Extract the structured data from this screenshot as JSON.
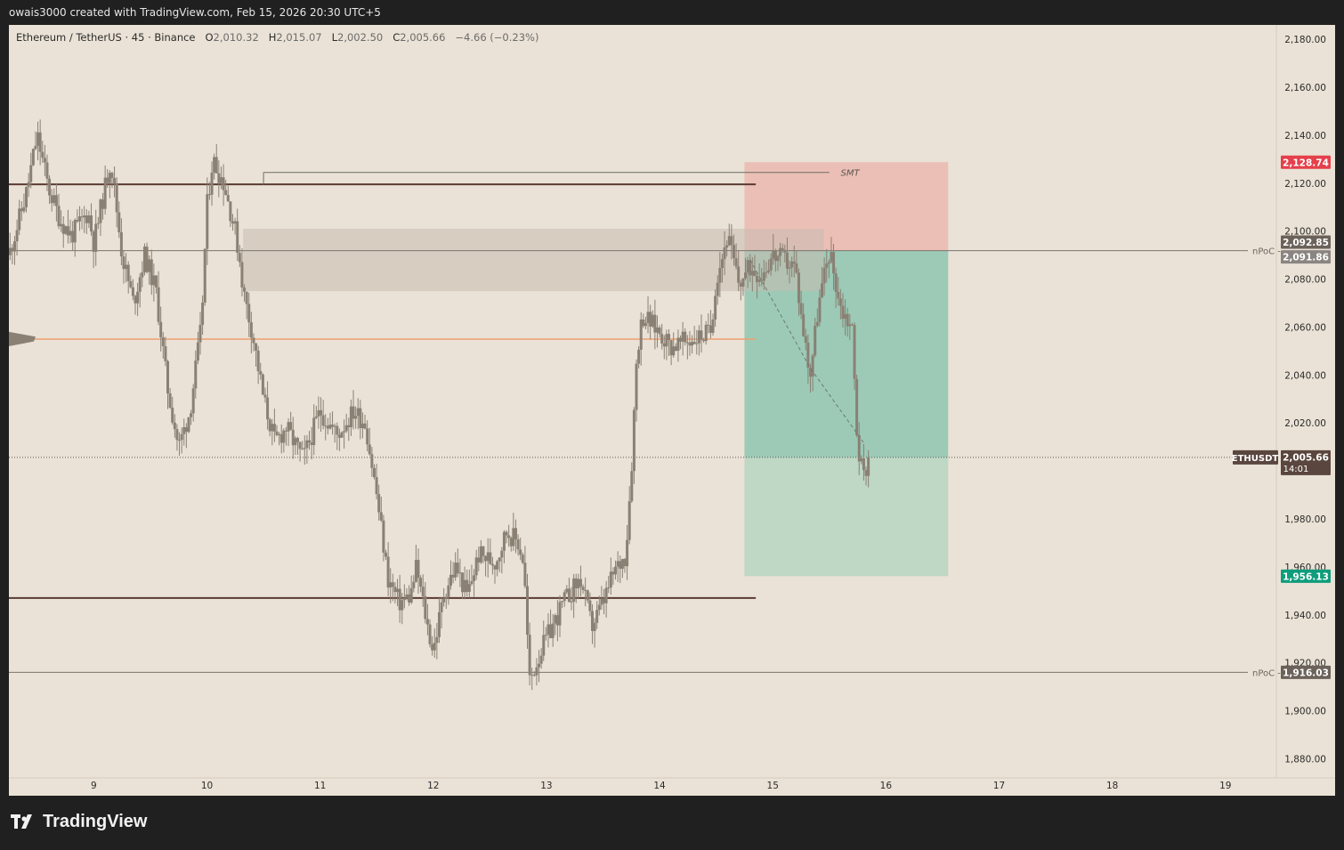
{
  "header": {
    "attribution": "owais3000 created with TradingView.com, Feb 15, 2026 20:30 UTC+5"
  },
  "legend": {
    "symbol": "Ethereum / TetherUS · 45 · Binance",
    "o_label": "O",
    "o_value": "2,010.32",
    "h_label": "H",
    "h_value": "2,015.07",
    "l_label": "L",
    "l_value": "2,002.50",
    "c_label": "C",
    "c_value": "2,005.66",
    "change": "−4.66 (−0.23%)"
  },
  "footer": {
    "brand": "TradingView"
  },
  "colors": {
    "background": "#eae2d6",
    "candle": "#8a8074",
    "stop_zone": "#ebbfb5",
    "target_zone_top": "#9ccab6",
    "target_zone_bottom": "#bfd7c5",
    "stop_label": "#e5404b",
    "target_label": "#0f9d7c",
    "level_line": "#5a3a32",
    "orange_line": "#f0a070"
  },
  "chart_data": {
    "type": "candlestick",
    "symbol": "ETHUSDT",
    "x_tick_labels": [
      "9",
      "10",
      "11",
      "12",
      "13",
      "14",
      "15",
      "16",
      "17",
      "18",
      "19"
    ],
    "y_tick_labels": [
      "2,180.00",
      "2,160.00",
      "2,140.00",
      "2,120.00",
      "2,100.00",
      "2,080.00",
      "2,060.00",
      "2,040.00",
      "2,020.00",
      "2,000.00",
      "1,980.00",
      "1,960.00",
      "1,940.00",
      "1,920.00",
      "1,900.00",
      "1,880.00"
    ],
    "ylim": [
      1872,
      2186
    ],
    "xlim": [
      8.25,
      19.45
    ],
    "ohlc": {
      "open": "2,010.32",
      "high": "2,015.07",
      "low": "2,002.50",
      "close": "2,005.66"
    },
    "price_path": [
      [
        8.25,
        2090
      ],
      [
        8.4,
        2115
      ],
      [
        8.5,
        2140
      ],
      [
        8.6,
        2118
      ],
      [
        8.7,
        2105
      ],
      [
        8.8,
        2098
      ],
      [
        8.95,
        2108
      ],
      [
        9.0,
        2095
      ],
      [
        9.15,
        2130
      ],
      [
        9.25,
        2090
      ],
      [
        9.35,
        2070
      ],
      [
        9.45,
        2090
      ],
      [
        9.55,
        2075
      ],
      [
        9.65,
        2035
      ],
      [
        9.75,
        2010
      ],
      [
        9.85,
        2025
      ],
      [
        9.95,
        2060
      ],
      [
        10.0,
        2110
      ],
      [
        10.05,
        2130
      ],
      [
        10.15,
        2120
      ],
      [
        10.25,
        2100
      ],
      [
        10.3,
        2085
      ],
      [
        10.32,
        2075
      ],
      [
        10.4,
        2058
      ],
      [
        10.5,
        2030
      ],
      [
        10.6,
        2012
      ],
      [
        10.7,
        2018
      ],
      [
        10.85,
        2005
      ],
      [
        11.0,
        2025
      ],
      [
        11.15,
        2015
      ],
      [
        11.3,
        2025
      ],
      [
        11.4,
        2020
      ],
      [
        11.5,
        1990
      ],
      [
        11.6,
        1955
      ],
      [
        11.7,
        1945
      ],
      [
        11.8,
        1948
      ],
      [
        11.85,
        1960
      ],
      [
        11.95,
        1935
      ],
      [
        12.0,
        1925
      ],
      [
        12.1,
        1950
      ],
      [
        12.2,
        1960
      ],
      [
        12.3,
        1948
      ],
      [
        12.4,
        1965
      ],
      [
        12.55,
        1962
      ],
      [
        12.65,
        1975
      ],
      [
        12.75,
        1970
      ],
      [
        12.8,
        1962
      ],
      [
        12.85,
        1912
      ],
      [
        12.95,
        1925
      ],
      [
        13.05,
        1935
      ],
      [
        13.15,
        1945
      ],
      [
        13.3,
        1955
      ],
      [
        13.4,
        1935
      ],
      [
        13.5,
        1945
      ],
      [
        13.6,
        1958
      ],
      [
        13.7,
        1965
      ],
      [
        13.75,
        2000
      ],
      [
        13.8,
        2050
      ],
      [
        13.85,
        2065
      ],
      [
        14.0,
        2058
      ],
      [
        14.1,
        2052
      ],
      [
        14.3,
        2055
      ],
      [
        14.45,
        2058
      ],
      [
        14.5,
        2080
      ],
      [
        14.6,
        2098
      ],
      [
        14.7,
        2078
      ],
      [
        14.8,
        2085
      ],
      [
        14.9,
        2082
      ],
      [
        15.0,
        2090
      ],
      [
        15.1,
        2088
      ],
      [
        15.2,
        2085
      ],
      [
        15.25,
        2065
      ],
      [
        15.33,
        2040
      ],
      [
        15.4,
        2068
      ],
      [
        15.5,
        2092
      ],
      [
        15.55,
        2080
      ],
      [
        15.6,
        2068
      ],
      [
        15.7,
        2060
      ],
      [
        15.75,
        2010
      ],
      [
        15.8,
        1998
      ],
      [
        15.85,
        2005.66
      ]
    ],
    "drawings": {
      "stop_zone": {
        "top": 2128.74,
        "bottom": 2091.86,
        "x0": 14.75,
        "x1": 16.55
      },
      "target_zone": {
        "top": 2091.86,
        "bottom": 1956.13,
        "x0": 14.75,
        "x1": 16.55
      },
      "entry_price": 2091.86,
      "supply_box": {
        "top": 2101,
        "bottom": 2075,
        "x0": 10.32,
        "x1": 15.45
      },
      "resistance_line": {
        "price": 2119.5,
        "x0": 8.25,
        "x1": 14.85
      },
      "support_line": {
        "price": 1947,
        "x0": 8.25,
        "x1": 14.85
      },
      "orange_line": {
        "price": 2055,
        "x0": 8.25,
        "x1": 14.85
      },
      "smt_line": {
        "price": 2124.5,
        "x0": 10.5,
        "x1": 15.5
      },
      "smt_label": "SMT",
      "npoc_label": "nPoC",
      "npoc_levels": [
        2092.85,
        1916.03
      ],
      "dashed_path": [
        [
          14.8,
          2088
        ],
        [
          15.33,
          2043
        ],
        [
          15.8,
          2012
        ]
      ]
    },
    "price_labels": [
      {
        "text": "2,128.74",
        "kind": "stop",
        "price": 2128.74
      },
      {
        "text": "2,092.85",
        "kind": "npoc",
        "price": 2092.85
      },
      {
        "text": "2,091.86",
        "kind": "entry",
        "price": 2091.86
      },
      {
        "text": "2,005.66",
        "kind": "last",
        "price": 2005.66
      },
      {
        "text": "1,956.13",
        "kind": "target",
        "price": 1956.13
      },
      {
        "text": "1,916.03",
        "kind": "npoc",
        "price": 1916.03
      }
    ],
    "last_price": {
      "price": 2005.66,
      "symbol_tag": "ETHUSDT",
      "countdown": "14:01"
    }
  }
}
